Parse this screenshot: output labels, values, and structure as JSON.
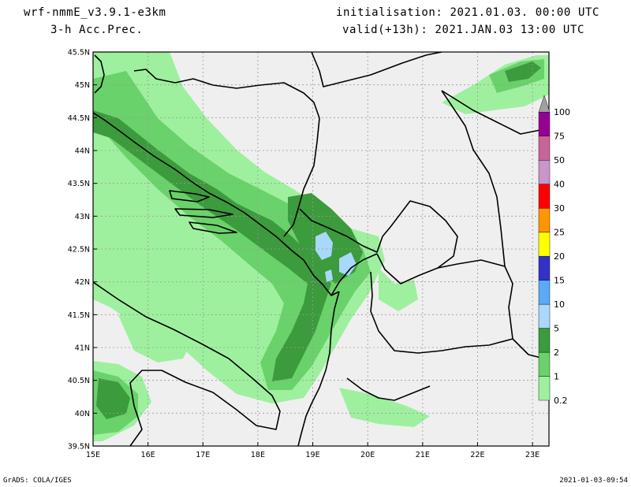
{
  "header": {
    "model": "wrf-nmmE_v3.9.1-e3km",
    "field": "3-h Acc.Prec.",
    "initialisation": "initialisation: 2021.01.03.  00:00 UTC",
    "valid": "valid(+13h): 2021.JAN.03 13:00 UTC"
  },
  "footer": {
    "credit": "GrADS: COLA/IGES",
    "timestamp": "2021-01-03-09:54"
  },
  "axes": {
    "lon_range": [
      15,
      23.3
    ],
    "lat_range": [
      39.5,
      45.5
    ],
    "lon_ticks": [
      {
        "value": 15,
        "label": "15E"
      },
      {
        "value": 16,
        "label": "16E"
      },
      {
        "value": 17,
        "label": "17E"
      },
      {
        "value": 18,
        "label": "18E"
      },
      {
        "value": 19,
        "label": "19E"
      },
      {
        "value": 20,
        "label": "20E"
      },
      {
        "value": 21,
        "label": "21E"
      },
      {
        "value": 22,
        "label": "22E"
      },
      {
        "value": 23,
        "label": "23E"
      }
    ],
    "lat_ticks": [
      {
        "value": 39.5,
        "label": "39.5N"
      },
      {
        "value": 40,
        "label": "40N"
      },
      {
        "value": 40.5,
        "label": "40.5N"
      },
      {
        "value": 41,
        "label": "41N"
      },
      {
        "value": 41.5,
        "label": "41.5N"
      },
      {
        "value": 42,
        "label": "42N"
      },
      {
        "value": 42.5,
        "label": "42.5N"
      },
      {
        "value": 43,
        "label": "43N"
      },
      {
        "value": 43.5,
        "label": "43.5N"
      },
      {
        "value": 44,
        "label": "44N"
      },
      {
        "value": 44.5,
        "label": "44.5N"
      },
      {
        "value": 45,
        "label": "45N"
      },
      {
        "value": 45.5,
        "label": "45.5N"
      }
    ],
    "grid": true
  },
  "colorbar": {
    "levels": [
      {
        "label": "0.2",
        "color": "#9ef09e"
      },
      {
        "label": "1",
        "color": "#6ad26a"
      },
      {
        "label": "2",
        "color": "#3c9b3c"
      },
      {
        "label": "5",
        "color": "#a8d8fa"
      },
      {
        "label": "10",
        "color": "#5aaaf5"
      },
      {
        "label": "15",
        "color": "#3232c8"
      },
      {
        "label": "20",
        "color": "#ffff00"
      },
      {
        "label": "25",
        "color": "#ff9600"
      },
      {
        "label": "30",
        "color": "#ff0000"
      },
      {
        "label": "40",
        "color": "#c896c8"
      },
      {
        "label": "50",
        "color": "#c86496"
      },
      {
        "label": "75",
        "color": "#960096"
      },
      {
        "label": "100",
        "color": "#a0a0a0"
      }
    ]
  },
  "colors": {
    "land": "#efefef",
    "grid": "#9a9a9a"
  }
}
